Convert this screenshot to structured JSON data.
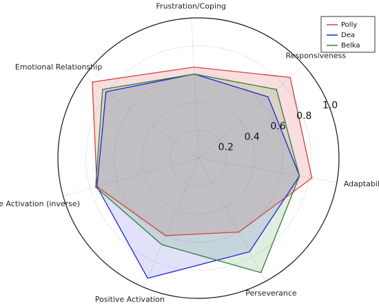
{
  "chart_data": {
    "type": "radar",
    "axes": [
      "Adaptability",
      "Responsiveness",
      "Frustration/Coping",
      "Emotional Relationship",
      "Negative Activation (inverse)",
      "Positive Activation",
      "Perseverance"
    ],
    "radial_ticks": [
      "0.2",
      "0.4",
      "0.6",
      "0.8",
      "1.0"
    ],
    "radial_tick_values": [
      0.2,
      0.4,
      0.6,
      0.8,
      1.0
    ],
    "rlim": [
      0,
      1.0
    ],
    "grid": true,
    "legend_position": "top-right",
    "series": [
      {
        "name": "Polly",
        "color": "#d04040",
        "fill": "rgba(220,90,90,0.20)",
        "values": [
          0.82,
          0.87,
          0.65,
          0.93,
          0.75,
          0.6,
          0.6
        ]
      },
      {
        "name": "Dea",
        "color": "#1f1fd8",
        "fill": "rgba(90,90,225,0.18)",
        "values": [
          0.73,
          0.66,
          0.6,
          0.81,
          0.75,
          0.93,
          0.76
        ]
      },
      {
        "name": "Belka",
        "color": "#2e7d32",
        "fill": "rgba(80,160,80,0.18)",
        "values": [
          0.73,
          0.74,
          0.6,
          0.84,
          0.76,
          0.67,
          0.93
        ]
      }
    ]
  }
}
